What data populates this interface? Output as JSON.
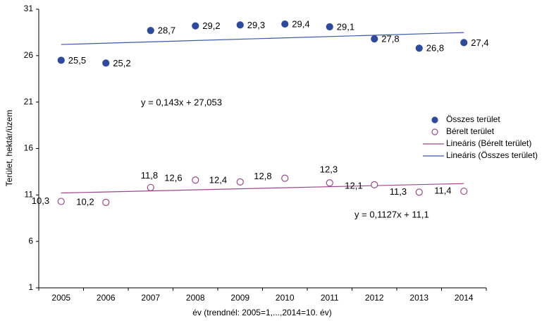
{
  "chart_data": {
    "type": "scatter",
    "x_label": "év (trendnél: 2005=1,...,2014=10. év)",
    "y_label": "Terület, hektár/üzem",
    "categories": [
      "2005",
      "2006",
      "2007",
      "2008",
      "2009",
      "2010",
      "2011",
      "2012",
      "2013",
      "2014"
    ],
    "series": [
      {
        "name": "Összes terület",
        "color": "#2e4a9e",
        "marker": "filled",
        "values": [
          25.5,
          25.2,
          28.7,
          29.2,
          29.3,
          29.4,
          29.1,
          27.8,
          26.8,
          27.4
        ],
        "value_labels": [
          "25,5",
          "25,2",
          "28,7",
          "29,2",
          "29,3",
          "29,4",
          "29,1",
          "27,8",
          "26,8",
          "27,4"
        ]
      },
      {
        "name": "Bérelt terület",
        "color": "#a0468e",
        "marker": "open",
        "values": [
          10.3,
          10.2,
          11.8,
          12.6,
          12.4,
          12.8,
          12.3,
          12.1,
          11.3,
          11.4
        ],
        "value_labels": [
          "10,3",
          "10,2",
          "11,8",
          "12,6",
          "12,4",
          "12,8",
          "12,3",
          "12,1",
          "11,3",
          "11,4"
        ]
      }
    ],
    "trendlines": [
      {
        "name": "Lineáris (Bérelt terület)",
        "color": "#a0468e",
        "slope": 0.1127,
        "intercept": 11.1,
        "equation": "y = 0,1127x + 11,1"
      },
      {
        "name": "Lineáris (Összes terület)",
        "color": "#3a5aa8",
        "slope": 0.143,
        "intercept": 27.053,
        "equation": "y = 0,143x + 27,053"
      }
    ],
    "ylim": [
      1,
      31
    ],
    "yticks": [
      1,
      6,
      11,
      16,
      21,
      26,
      31
    ]
  }
}
